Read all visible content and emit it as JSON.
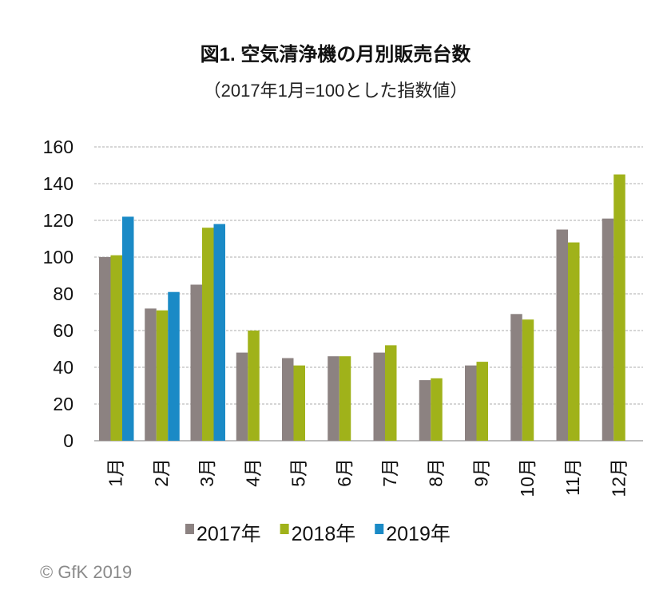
{
  "chart_data": {
    "type": "bar",
    "title": "図1. 空気清浄機の月別販売台数",
    "subtitle": "（2017年1月=100とした指数値）",
    "categories": [
      "1月",
      "2月",
      "3月",
      "4月",
      "5月",
      "6月",
      "7月",
      "8月",
      "9月",
      "10月",
      "11月",
      "12月"
    ],
    "series": [
      {
        "name": "2017年",
        "color": "#8c8281",
        "values": [
          100,
          72,
          85,
          48,
          45,
          46,
          48,
          33,
          41,
          69,
          115,
          121
        ]
      },
      {
        "name": "2018年",
        "color": "#a0b21a",
        "values": [
          101,
          71,
          116,
          60,
          41,
          46,
          52,
          34,
          43,
          66,
          108,
          145
        ]
      },
      {
        "name": "2019年",
        "color": "#1a8ac6",
        "values": [
          122,
          81,
          118,
          null,
          null,
          null,
          null,
          null,
          null,
          null,
          null,
          null
        ]
      }
    ],
    "ylim": [
      0,
      160
    ],
    "yticks": [
      0,
      20,
      40,
      60,
      80,
      100,
      120,
      140,
      160
    ],
    "grid": true,
    "legend_position": "bottom"
  },
  "copyright": "© GfK 2019"
}
